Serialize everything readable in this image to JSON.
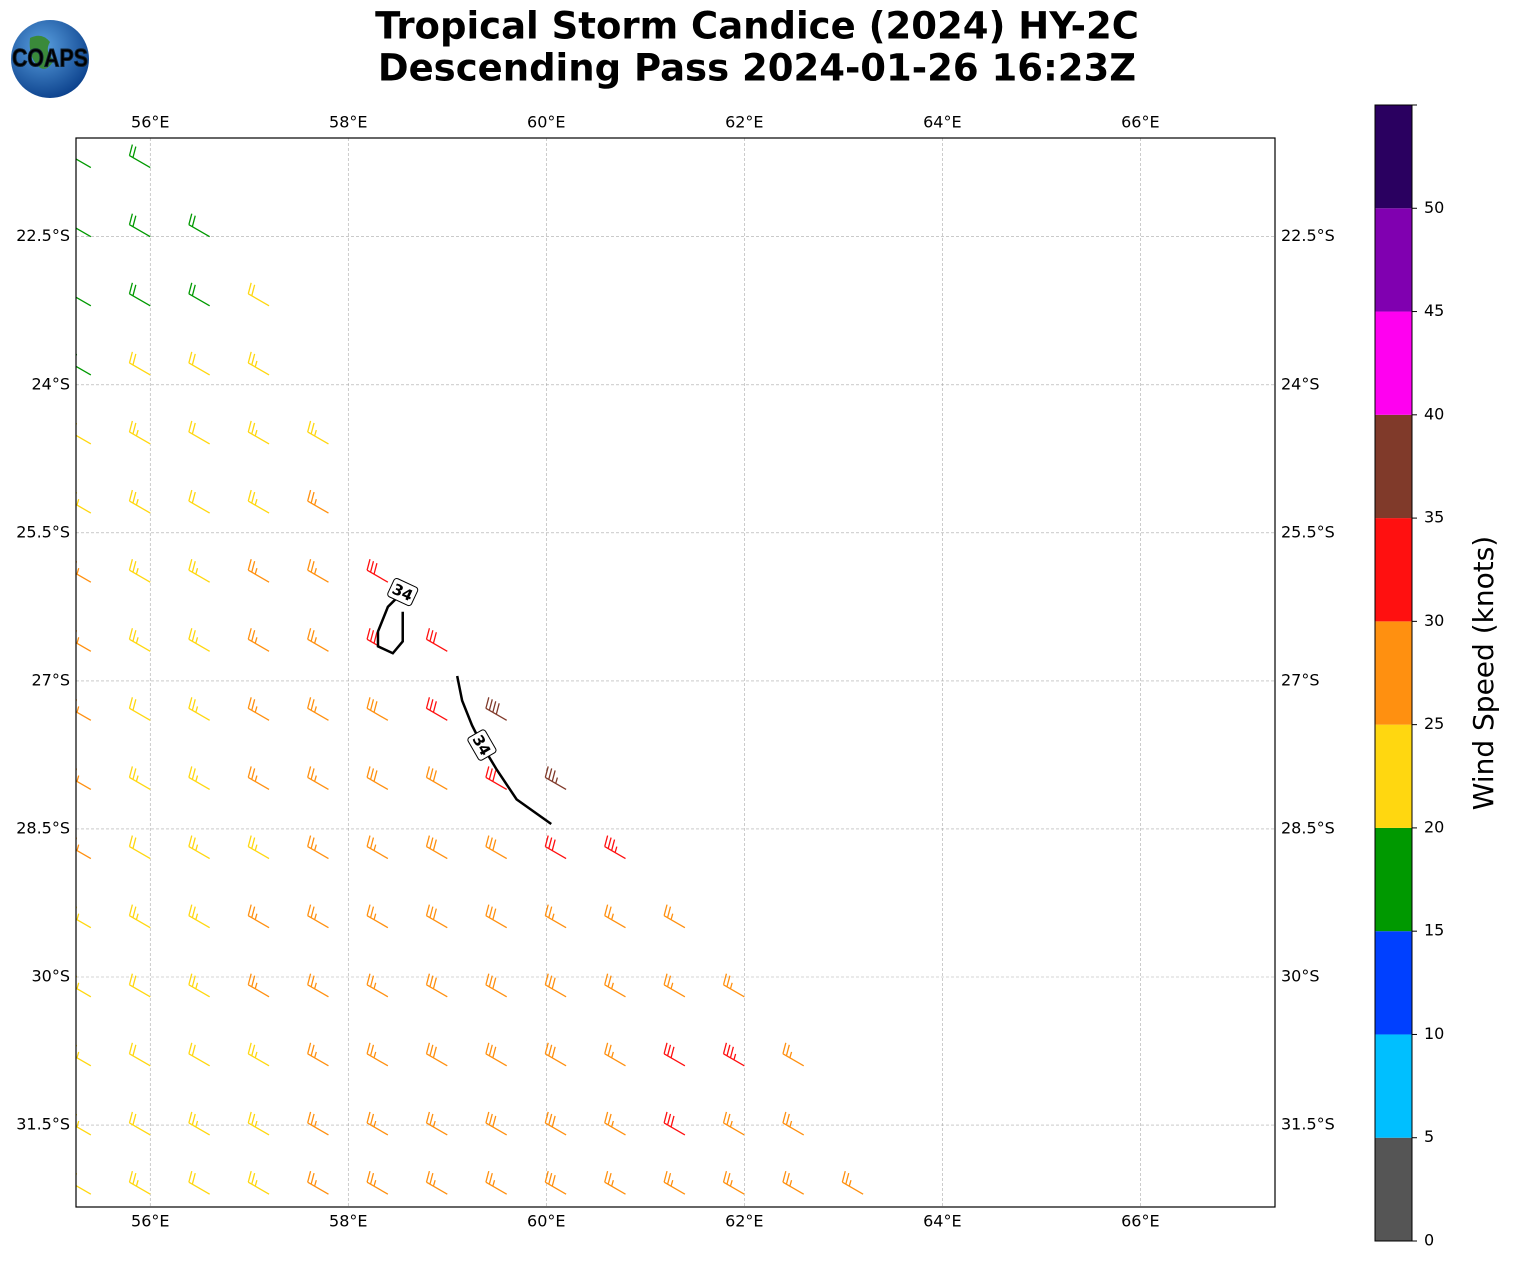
{
  "logo": {
    "text": "COAPS"
  },
  "chart_data": {
    "type": "barb_map",
    "title": [
      "Tropical Storm Candice (2024) HY-2C",
      "Descending Pass 2024-01-26 16:23Z"
    ],
    "xlim": [
      55.25,
      67.36
    ],
    "ylim": [
      -32.33,
      -21.5
    ],
    "xticks": [
      {
        "value": 56,
        "label": "56°E"
      },
      {
        "value": 58,
        "label": "58°E"
      },
      {
        "value": 60,
        "label": "60°E"
      },
      {
        "value": 62,
        "label": "62°E"
      },
      {
        "value": 64,
        "label": "64°E"
      },
      {
        "value": 66,
        "label": "66°E"
      }
    ],
    "yticks": [
      {
        "value": -22.5,
        "label": "22.5°S"
      },
      {
        "value": -24,
        "label": "24°S"
      },
      {
        "value": -25.5,
        "label": "25.5°S"
      },
      {
        "value": -27,
        "label": "27°S"
      },
      {
        "value": -28.5,
        "label": "28.5°S"
      },
      {
        "value": -30,
        "label": "30°S"
      },
      {
        "value": -31.5,
        "label": "31.5°S"
      }
    ],
    "grid": true,
    "barbs": {
      "direction": 300,
      "rows": [
        {
          "lat": -21.8,
          "lon": [
            55.4,
            56.0
          ],
          "speed": [
            17,
            18
          ]
        },
        {
          "lat": -22.5,
          "lon": [
            55.4,
            56.0,
            56.6
          ],
          "speed": [
            17,
            18,
            19
          ]
        },
        {
          "lat": -23.2,
          "lon": [
            55.4,
            56.0,
            56.6,
            57.2
          ],
          "speed": [
            16,
            18,
            19,
            21
          ]
        },
        {
          "lat": -23.9,
          "lon": [
            55.4,
            56.0,
            56.6,
            57.2
          ],
          "speed": [
            18,
            22,
            22,
            23
          ]
        },
        {
          "lat": -24.6,
          "lon": [
            55.4,
            56.0,
            56.6,
            57.2,
            57.8
          ],
          "speed": [
            22,
            23,
            22,
            23,
            24
          ]
        },
        {
          "lat": -25.3,
          "lon": [
            55.4,
            56.0,
            56.6,
            57.2,
            57.8
          ],
          "speed": [
            23,
            24,
            22,
            24,
            26
          ]
        },
        {
          "lat": -26.0,
          "lon": [
            55.4,
            56.0,
            56.6,
            57.2,
            57.8,
            58.4
          ],
          "speed": [
            26,
            24,
            23,
            25,
            27,
            31
          ]
        },
        {
          "lat": -26.7,
          "lon": [
            55.4,
            56.0,
            56.6,
            57.2,
            57.8,
            58.4,
            59.0
          ],
          "speed": [
            27,
            23,
            24,
            25,
            27,
            31,
            31
          ]
        },
        {
          "lat": -27.4,
          "lon": [
            55.4,
            56.0,
            56.6,
            57.2,
            57.8,
            58.4,
            59.0,
            59.6
          ],
          "speed": [
            26,
            22,
            24,
            26,
            27,
            28,
            32,
            38
          ]
        },
        {
          "lat": -28.1,
          "lon": [
            55.4,
            56.0,
            56.6,
            57.2,
            57.8,
            58.4,
            59.0,
            59.6,
            60.2
          ],
          "speed": [
            27,
            23,
            24,
            26,
            27,
            28,
            29,
            32,
            37
          ]
        },
        {
          "lat": -28.8,
          "lon": [
            55.4,
            56.0,
            56.6,
            57.2,
            57.8,
            58.4,
            59.0,
            59.6,
            60.2,
            60.8
          ],
          "speed": [
            26,
            22,
            23,
            24,
            26,
            27,
            28,
            29,
            31,
            33
          ]
        },
        {
          "lat": -29.5,
          "lon": [
            55.4,
            56.0,
            56.6,
            57.2,
            57.8,
            58.4,
            59.0,
            59.6,
            60.2,
            60.8,
            61.4
          ],
          "speed": [
            24,
            23,
            24,
            26,
            27,
            27,
            28,
            28,
            27,
            27,
            26
          ]
        },
        {
          "lat": -30.2,
          "lon": [
            55.4,
            56.0,
            56.6,
            57.2,
            57.8,
            58.4,
            59.0,
            59.6,
            60.2,
            60.8,
            61.4,
            62.0
          ],
          "speed": [
            24,
            22,
            23,
            25,
            27,
            27,
            28,
            28,
            28,
            27,
            27,
            26
          ]
        },
        {
          "lat": -30.9,
          "lon": [
            55.4,
            56.0,
            56.6,
            57.2,
            57.8,
            58.4,
            59.0,
            59.6,
            60.2,
            60.8,
            61.4,
            62.0,
            62.6
          ],
          "speed": [
            23,
            22,
            22,
            24,
            26,
            27,
            28,
            28,
            28,
            27,
            31,
            33,
            26
          ]
        },
        {
          "lat": -31.6,
          "lon": [
            55.4,
            56.0,
            56.6,
            57.2,
            57.8,
            58.4,
            59.0,
            59.6,
            60.2,
            60.8,
            61.4,
            62.0,
            62.6
          ],
          "speed": [
            23,
            22,
            23,
            24,
            26,
            27,
            27,
            28,
            28,
            27,
            31,
            27,
            26
          ]
        },
        {
          "lat": -32.2,
          "lon": [
            55.4,
            56.0,
            56.6,
            57.2,
            57.8,
            58.4,
            59.0,
            59.6,
            60.2,
            60.8,
            61.4,
            62.0,
            62.6,
            63.2
          ],
          "speed": [
            22,
            23,
            22,
            23,
            25,
            26,
            27,
            27,
            28,
            27,
            27,
            27,
            26,
            26
          ]
        }
      ]
    },
    "contours": {
      "level": 34,
      "color": "#000000",
      "lines": [
        {
          "lon": [
            58.55,
            58.4,
            58.3,
            58.3,
            58.45,
            58.55,
            58.55
          ],
          "lat": [
            -26.1,
            -26.25,
            -26.5,
            -26.65,
            -26.72,
            -26.6,
            -26.3
          ]
        },
        {
          "lon": [
            59.1,
            59.15,
            59.25,
            59.35,
            59.5,
            59.7,
            60.05
          ],
          "lat": [
            -26.95,
            -27.2,
            -27.45,
            -27.65,
            -27.9,
            -28.2,
            -28.45
          ]
        }
      ]
    },
    "colorbar": {
      "label": "Wind Speed (knots)",
      "bins": [
        0,
        5,
        10,
        15,
        20,
        25,
        30,
        35,
        40,
        45,
        50,
        55
      ],
      "colors": [
        "#555555",
        "#00bfff",
        "#0040ff",
        "#009900",
        "#ffd710",
        "#ff9010",
        "#ff1010",
        "#803a2a",
        "#ff00f0",
        "#8000b0",
        "#2a0060"
      ],
      "ticks": [
        0,
        5,
        10,
        15,
        20,
        25,
        30,
        35,
        40,
        45,
        50
      ]
    }
  }
}
